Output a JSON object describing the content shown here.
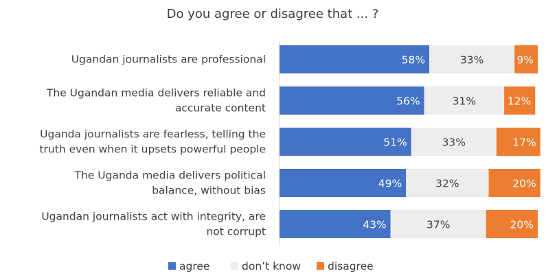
{
  "chart_data": {
    "type": "bar",
    "orientation": "horizontal",
    "stacked": "100%",
    "title": "Do you agree or disagree that ... ?",
    "categories": [
      [
        "Ugandan journalists are professional"
      ],
      [
        "The Ugandan media delivers reliable and",
        "accurate content"
      ],
      [
        "Uganda journalists are fearless, telling the",
        "truth even when it upsets powerful people"
      ],
      [
        "The Uganda media delivers political",
        "balance, without bias"
      ],
      [
        "Ugandan journalists act with integrity, are",
        "not corrupt"
      ]
    ],
    "series": [
      {
        "name": "agree",
        "color": "#4472C4",
        "text_color": "#ffffff",
        "values": [
          58,
          56,
          51,
          49,
          43
        ],
        "labels": [
          "58%",
          "56%",
          "51%",
          "49%",
          "43%"
        ]
      },
      {
        "name": "don’t know",
        "color": "#EDEDED",
        "text_color": "#404040",
        "values": [
          33,
          31,
          33,
          32,
          37
        ],
        "labels": [
          "33%",
          "31%",
          "33%",
          "32%",
          "37%"
        ]
      },
      {
        "name": "disagree",
        "color": "#ED7D31",
        "text_color": "#ffffff",
        "values": [
          9,
          12,
          17,
          20,
          20
        ],
        "labels": [
          "9%",
          "12%",
          "17%",
          "20%",
          "20%"
        ]
      }
    ],
    "xlim": [
      0,
      100
    ],
    "grid": false,
    "legend_position": "bottom"
  }
}
